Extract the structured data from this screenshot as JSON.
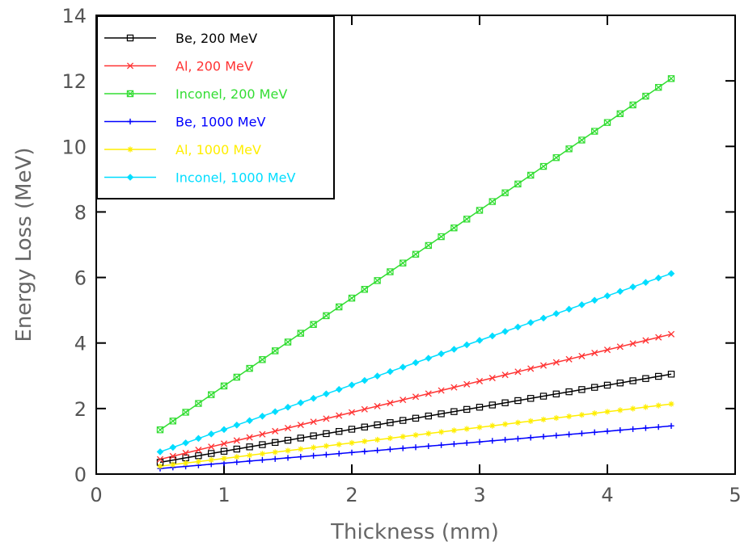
{
  "chart_data": {
    "type": "line",
    "title": "",
    "xlabel": "Thickness (mm)",
    "ylabel": "Energy Loss (MeV)",
    "xlim": [
      0,
      5
    ],
    "ylim": [
      0,
      14
    ],
    "xticks": [
      "0",
      "1",
      "2",
      "3",
      "4",
      "5"
    ],
    "yticks": [
      "0",
      "2",
      "4",
      "6",
      "8",
      "10",
      "12",
      "14"
    ],
    "grid": false,
    "legend_position": "top-left",
    "x_start": 0.5,
    "x_end": 4.5,
    "x_step": 0.1,
    "series": [
      {
        "name": "Be, 200 MeV",
        "color": "#000000",
        "marker": "square",
        "y_start": 0.36,
        "y_end": 3.05
      },
      {
        "name": "Al, 200 MeV",
        "color": "#ff3333",
        "marker": "x",
        "y_start": 0.45,
        "y_end": 4.27
      },
      {
        "name": "Inconel, 200 MeV",
        "color": "#33dd33",
        "marker": "boxed-x",
        "y_start": 1.35,
        "y_end": 12.07
      },
      {
        "name": "Be, 1000 MeV",
        "color": "#0000ff",
        "marker": "plus",
        "y_start": 0.17,
        "y_end": 1.47
      },
      {
        "name": "Al, 1000 MeV",
        "color": "#ffee00",
        "marker": "star",
        "y_start": 0.24,
        "y_end": 2.14
      },
      {
        "name": "Inconel, 1000 MeV",
        "color": "#00ddff",
        "marker": "diamond",
        "y_start": 0.68,
        "y_end": 6.12
      }
    ]
  }
}
